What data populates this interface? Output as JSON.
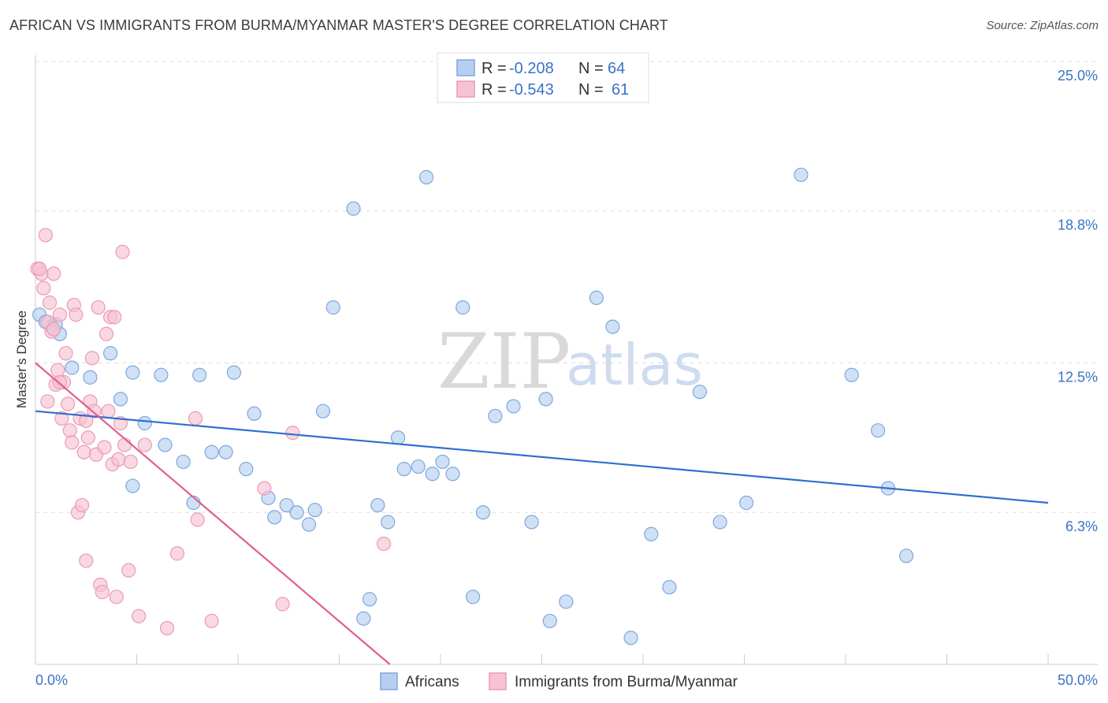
{
  "header": {
    "title": "AFRICAN VS IMMIGRANTS FROM BURMA/MYANMAR MASTER'S DEGREE CORRELATION CHART",
    "source": "Source: ZipAtlas.com"
  },
  "watermark": {
    "zip": "ZIP",
    "atlas": "atlas"
  },
  "colors": {
    "blue_fill": "#b7cff0",
    "blue_stroke": "#7ea8de",
    "blue_line": "#2e6fd0",
    "pink_fill": "#f6c3d3",
    "pink_stroke": "#ec9ab5",
    "pink_line": "#e0608c",
    "tick_text": "#3a72c8",
    "grid": "#dddddd"
  },
  "legend": {
    "rows": [
      {
        "r_label": "R =",
        "r_value": "-0.208",
        "n_label": "N =",
        "n_value": "64"
      },
      {
        "r_label": "R =",
        "r_value": "-0.543",
        "n_label": "N =",
        "n_value": "61"
      }
    ]
  },
  "chart_data": {
    "type": "scatter",
    "title": "AFRICAN VS IMMIGRANTS FROM BURMA/MYANMAR MASTER'S DEGREE CORRELATION CHART",
    "xlabel": "",
    "ylabel": "Master's Degree",
    "xlim": [
      0,
      50
    ],
    "ylim": [
      0,
      25.0
    ],
    "x_tick_labels": [
      {
        "value": 0,
        "label": "0.0%"
      },
      {
        "value": 50,
        "label": "50.0%"
      }
    ],
    "y_tick_labels": [
      {
        "value": 6.3,
        "label": "6.3%"
      },
      {
        "value": 12.5,
        "label": "12.5%"
      },
      {
        "value": 18.8,
        "label": "18.8%"
      },
      {
        "value": 25.0,
        "label": "25.0%"
      }
    ],
    "grid": true,
    "legend_position": "top-center",
    "series": [
      {
        "name": "Africans",
        "color": "#b7cff0",
        "r": -0.208,
        "n": 64,
        "trend": {
          "x": [
            0,
            50
          ],
          "y": [
            10.5,
            6.7
          ]
        },
        "points": [
          [
            0.2,
            14.5
          ],
          [
            0.8,
            14.0
          ],
          [
            1.2,
            13.7
          ],
          [
            1.8,
            12.3
          ],
          [
            2.7,
            11.9
          ],
          [
            3.7,
            12.9
          ],
          [
            4.2,
            11.0
          ],
          [
            4.8,
            12.1
          ],
          [
            6.2,
            12.0
          ],
          [
            8.1,
            12.0
          ],
          [
            9.8,
            12.1
          ],
          [
            5.4,
            10.0
          ],
          [
            6.4,
            9.1
          ],
          [
            7.3,
            8.4
          ],
          [
            4.8,
            7.4
          ],
          [
            7.8,
            6.7
          ],
          [
            8.7,
            8.8
          ],
          [
            9.4,
            8.8
          ],
          [
            10.4,
            8.1
          ],
          [
            10.8,
            10.4
          ],
          [
            11.5,
            6.9
          ],
          [
            11.8,
            6.1
          ],
          [
            12.4,
            6.6
          ],
          [
            12.9,
            6.3
          ],
          [
            13.5,
            5.8
          ],
          [
            13.8,
            6.4
          ],
          [
            14.2,
            10.5
          ],
          [
            14.7,
            14.8
          ],
          [
            15.7,
            18.9
          ],
          [
            16.2,
            1.9
          ],
          [
            16.5,
            2.7
          ],
          [
            16.9,
            6.6
          ],
          [
            17.4,
            5.9
          ],
          [
            17.9,
            9.4
          ],
          [
            18.2,
            8.1
          ],
          [
            18.9,
            8.2
          ],
          [
            19.3,
            20.2
          ],
          [
            19.6,
            7.9
          ],
          [
            20.1,
            8.4
          ],
          [
            20.6,
            7.9
          ],
          [
            21.1,
            14.8
          ],
          [
            21.6,
            2.8
          ],
          [
            22.1,
            6.3
          ],
          [
            22.7,
            10.3
          ],
          [
            23.6,
            10.7
          ],
          [
            24.5,
            5.9
          ],
          [
            25.2,
            11.0
          ],
          [
            25.4,
            1.8
          ],
          [
            26.2,
            2.6
          ],
          [
            27.7,
            15.2
          ],
          [
            28.5,
            14.0
          ],
          [
            29.4,
            1.1
          ],
          [
            30.4,
            5.4
          ],
          [
            31.3,
            3.2
          ],
          [
            32.8,
            11.3
          ],
          [
            33.8,
            5.9
          ],
          [
            35.1,
            6.7
          ],
          [
            37.8,
            20.3
          ],
          [
            40.3,
            12.0
          ],
          [
            41.6,
            9.7
          ],
          [
            42.1,
            7.3
          ],
          [
            43.0,
            4.5
          ],
          [
            0.5,
            14.2
          ],
          [
            1.0,
            14.1
          ]
        ]
      },
      {
        "name": "Immigrants from Burma/Myanmar",
        "color": "#f6c3d3",
        "r": -0.543,
        "n": 61,
        "trend": {
          "x": [
            0,
            17.5
          ],
          "y": [
            12.5,
            0
          ]
        },
        "points": [
          [
            0.1,
            16.4
          ],
          [
            0.3,
            16.2
          ],
          [
            0.4,
            15.6
          ],
          [
            0.5,
            17.8
          ],
          [
            0.6,
            14.2
          ],
          [
            0.7,
            15.0
          ],
          [
            0.8,
            13.8
          ],
          [
            0.9,
            16.2
          ],
          [
            0.6,
            10.9
          ],
          [
            1.0,
            11.6
          ],
          [
            1.1,
            12.2
          ],
          [
            1.2,
            14.5
          ],
          [
            1.3,
            10.2
          ],
          [
            1.4,
            11.7
          ],
          [
            1.5,
            12.9
          ],
          [
            1.6,
            10.8
          ],
          [
            1.7,
            9.7
          ],
          [
            1.8,
            9.2
          ],
          [
            1.9,
            14.9
          ],
          [
            2.0,
            14.5
          ],
          [
            2.1,
            6.3
          ],
          [
            2.2,
            10.2
          ],
          [
            2.3,
            6.6
          ],
          [
            2.4,
            8.8
          ],
          [
            2.5,
            4.3
          ],
          [
            2.6,
            9.4
          ],
          [
            2.7,
            10.9
          ],
          [
            2.8,
            12.7
          ],
          [
            2.9,
            10.5
          ],
          [
            3.0,
            8.7
          ],
          [
            3.1,
            14.8
          ],
          [
            3.2,
            3.3
          ],
          [
            3.3,
            3.0
          ],
          [
            3.4,
            9.0
          ],
          [
            3.5,
            13.7
          ],
          [
            3.6,
            10.5
          ],
          [
            3.7,
            14.4
          ],
          [
            3.8,
            8.3
          ],
          [
            3.9,
            14.4
          ],
          [
            4.0,
            2.8
          ],
          [
            4.1,
            8.5
          ],
          [
            4.2,
            10.0
          ],
          [
            4.3,
            17.1
          ],
          [
            4.4,
            9.1
          ],
          [
            4.6,
            3.9
          ],
          [
            4.7,
            8.4
          ],
          [
            5.1,
            2.0
          ],
          [
            5.4,
            9.1
          ],
          [
            6.5,
            1.5
          ],
          [
            7.0,
            4.6
          ],
          [
            7.9,
            10.2
          ],
          [
            8.0,
            6.0
          ],
          [
            8.7,
            1.8
          ],
          [
            11.3,
            7.3
          ],
          [
            12.2,
            2.5
          ],
          [
            12.7,
            9.6
          ],
          [
            17.2,
            5.0
          ],
          [
            0.2,
            16.4
          ],
          [
            1.2,
            11.7
          ],
          [
            0.9,
            13.9
          ],
          [
            2.5,
            10.1
          ]
        ]
      }
    ]
  },
  "bottom_legend": {
    "items": [
      {
        "label": "Africans"
      },
      {
        "label": "Immigrants from Burma/Myanmar"
      }
    ]
  }
}
